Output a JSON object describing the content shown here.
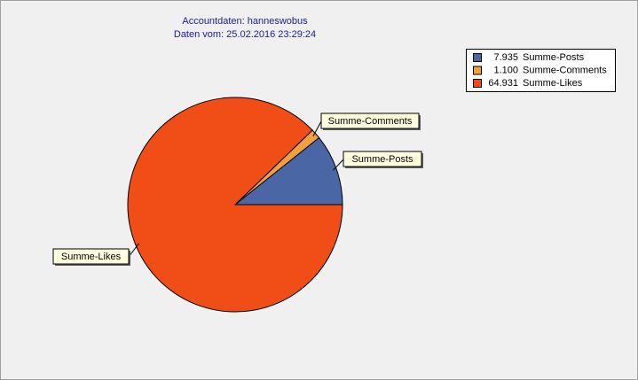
{
  "chart_data": {
    "type": "pie",
    "title": "Accountdaten: hanneswobus",
    "subtitle": "Daten vom: 25.02.2016 23:29:24",
    "categories": [
      "Summe-Posts",
      "Summe-Comments",
      "Summe-Likes"
    ],
    "values": [
      7935,
      1100,
      64931
    ],
    "value_labels": [
      "7.935",
      "1.100",
      "64.931"
    ],
    "colors": [
      "#4a66a4",
      "#f0a040",
      "#f04e16"
    ],
    "legend": "top-right"
  }
}
